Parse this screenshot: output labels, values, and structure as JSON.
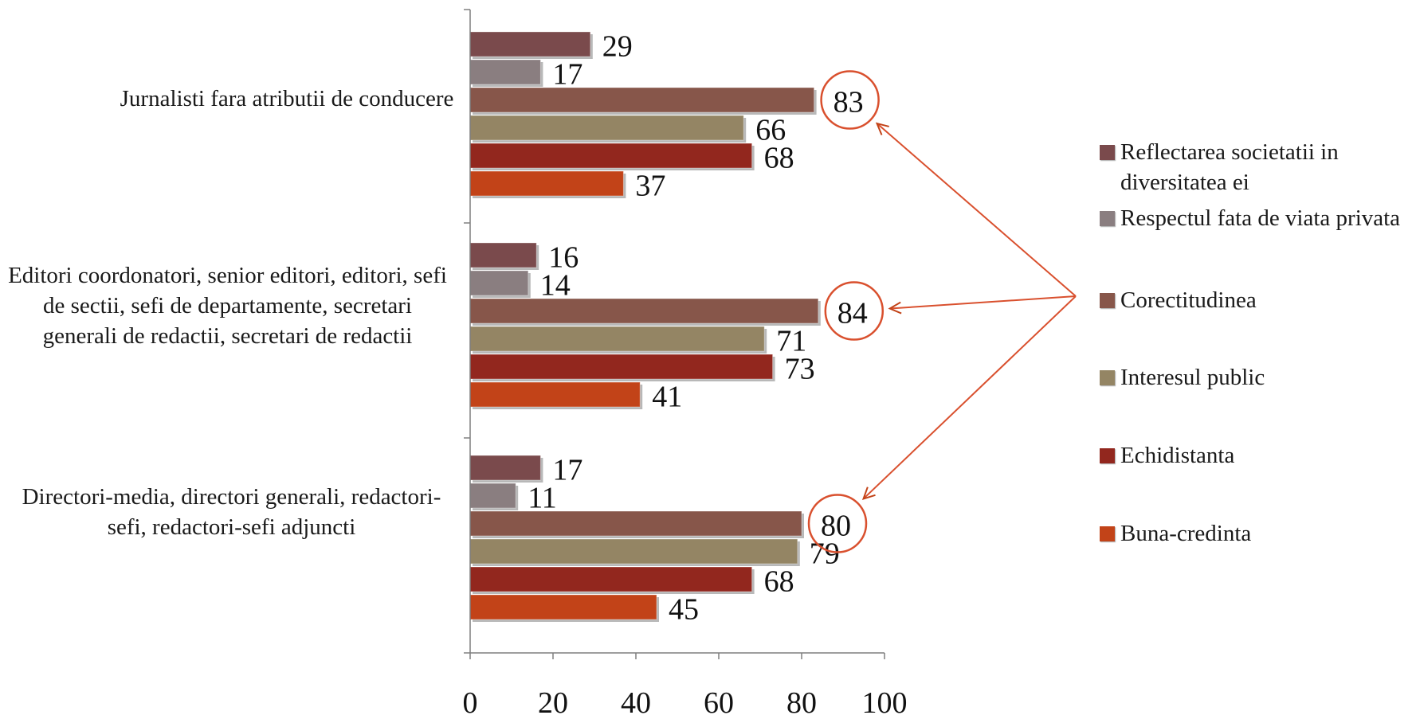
{
  "chart_data": {
    "type": "bar",
    "orientation": "horizontal",
    "categories": [
      "Jurnalisti fara atributii de conducere",
      "Editori coordonatori, senior editori, editori, sefi de sectii, sefi de departamente, secretari generali de redactii, secretari de redactii",
      "Directori-media, directori generali, redactori-sefi,  redactori-sefi adjuncti"
    ],
    "series": [
      {
        "name": "Reflectarea societatii in diversitatea ei",
        "color": "#7a4a4c",
        "values": [
          29,
          16,
          17
        ]
      },
      {
        "name": "Respectul fata de viata privata",
        "color": "#8a7e80",
        "values": [
          17,
          14,
          11
        ]
      },
      {
        "name": "Corectitudinea",
        "color": "#87564a",
        "values": [
          83,
          84,
          80
        ]
      },
      {
        "name": "Interesul public",
        "color": "#948564",
        "values": [
          66,
          71,
          79
        ]
      },
      {
        "name": "Echidistanta",
        "color": "#92271e",
        "values": [
          68,
          73,
          68
        ]
      },
      {
        "name": "Buna-credinta",
        "color": "#c24318",
        "values": [
          37,
          41,
          45
        ]
      }
    ],
    "xlim": [
      0,
      100
    ],
    "x_ticks": [
      "0",
      "20",
      "40",
      "60",
      "80",
      "100"
    ],
    "highlighted_series": "Corectitudinea",
    "highlight_color": "#d9502e",
    "legend_position": "right",
    "grid": false,
    "title": "",
    "xlabel": "",
    "ylabel": ""
  }
}
